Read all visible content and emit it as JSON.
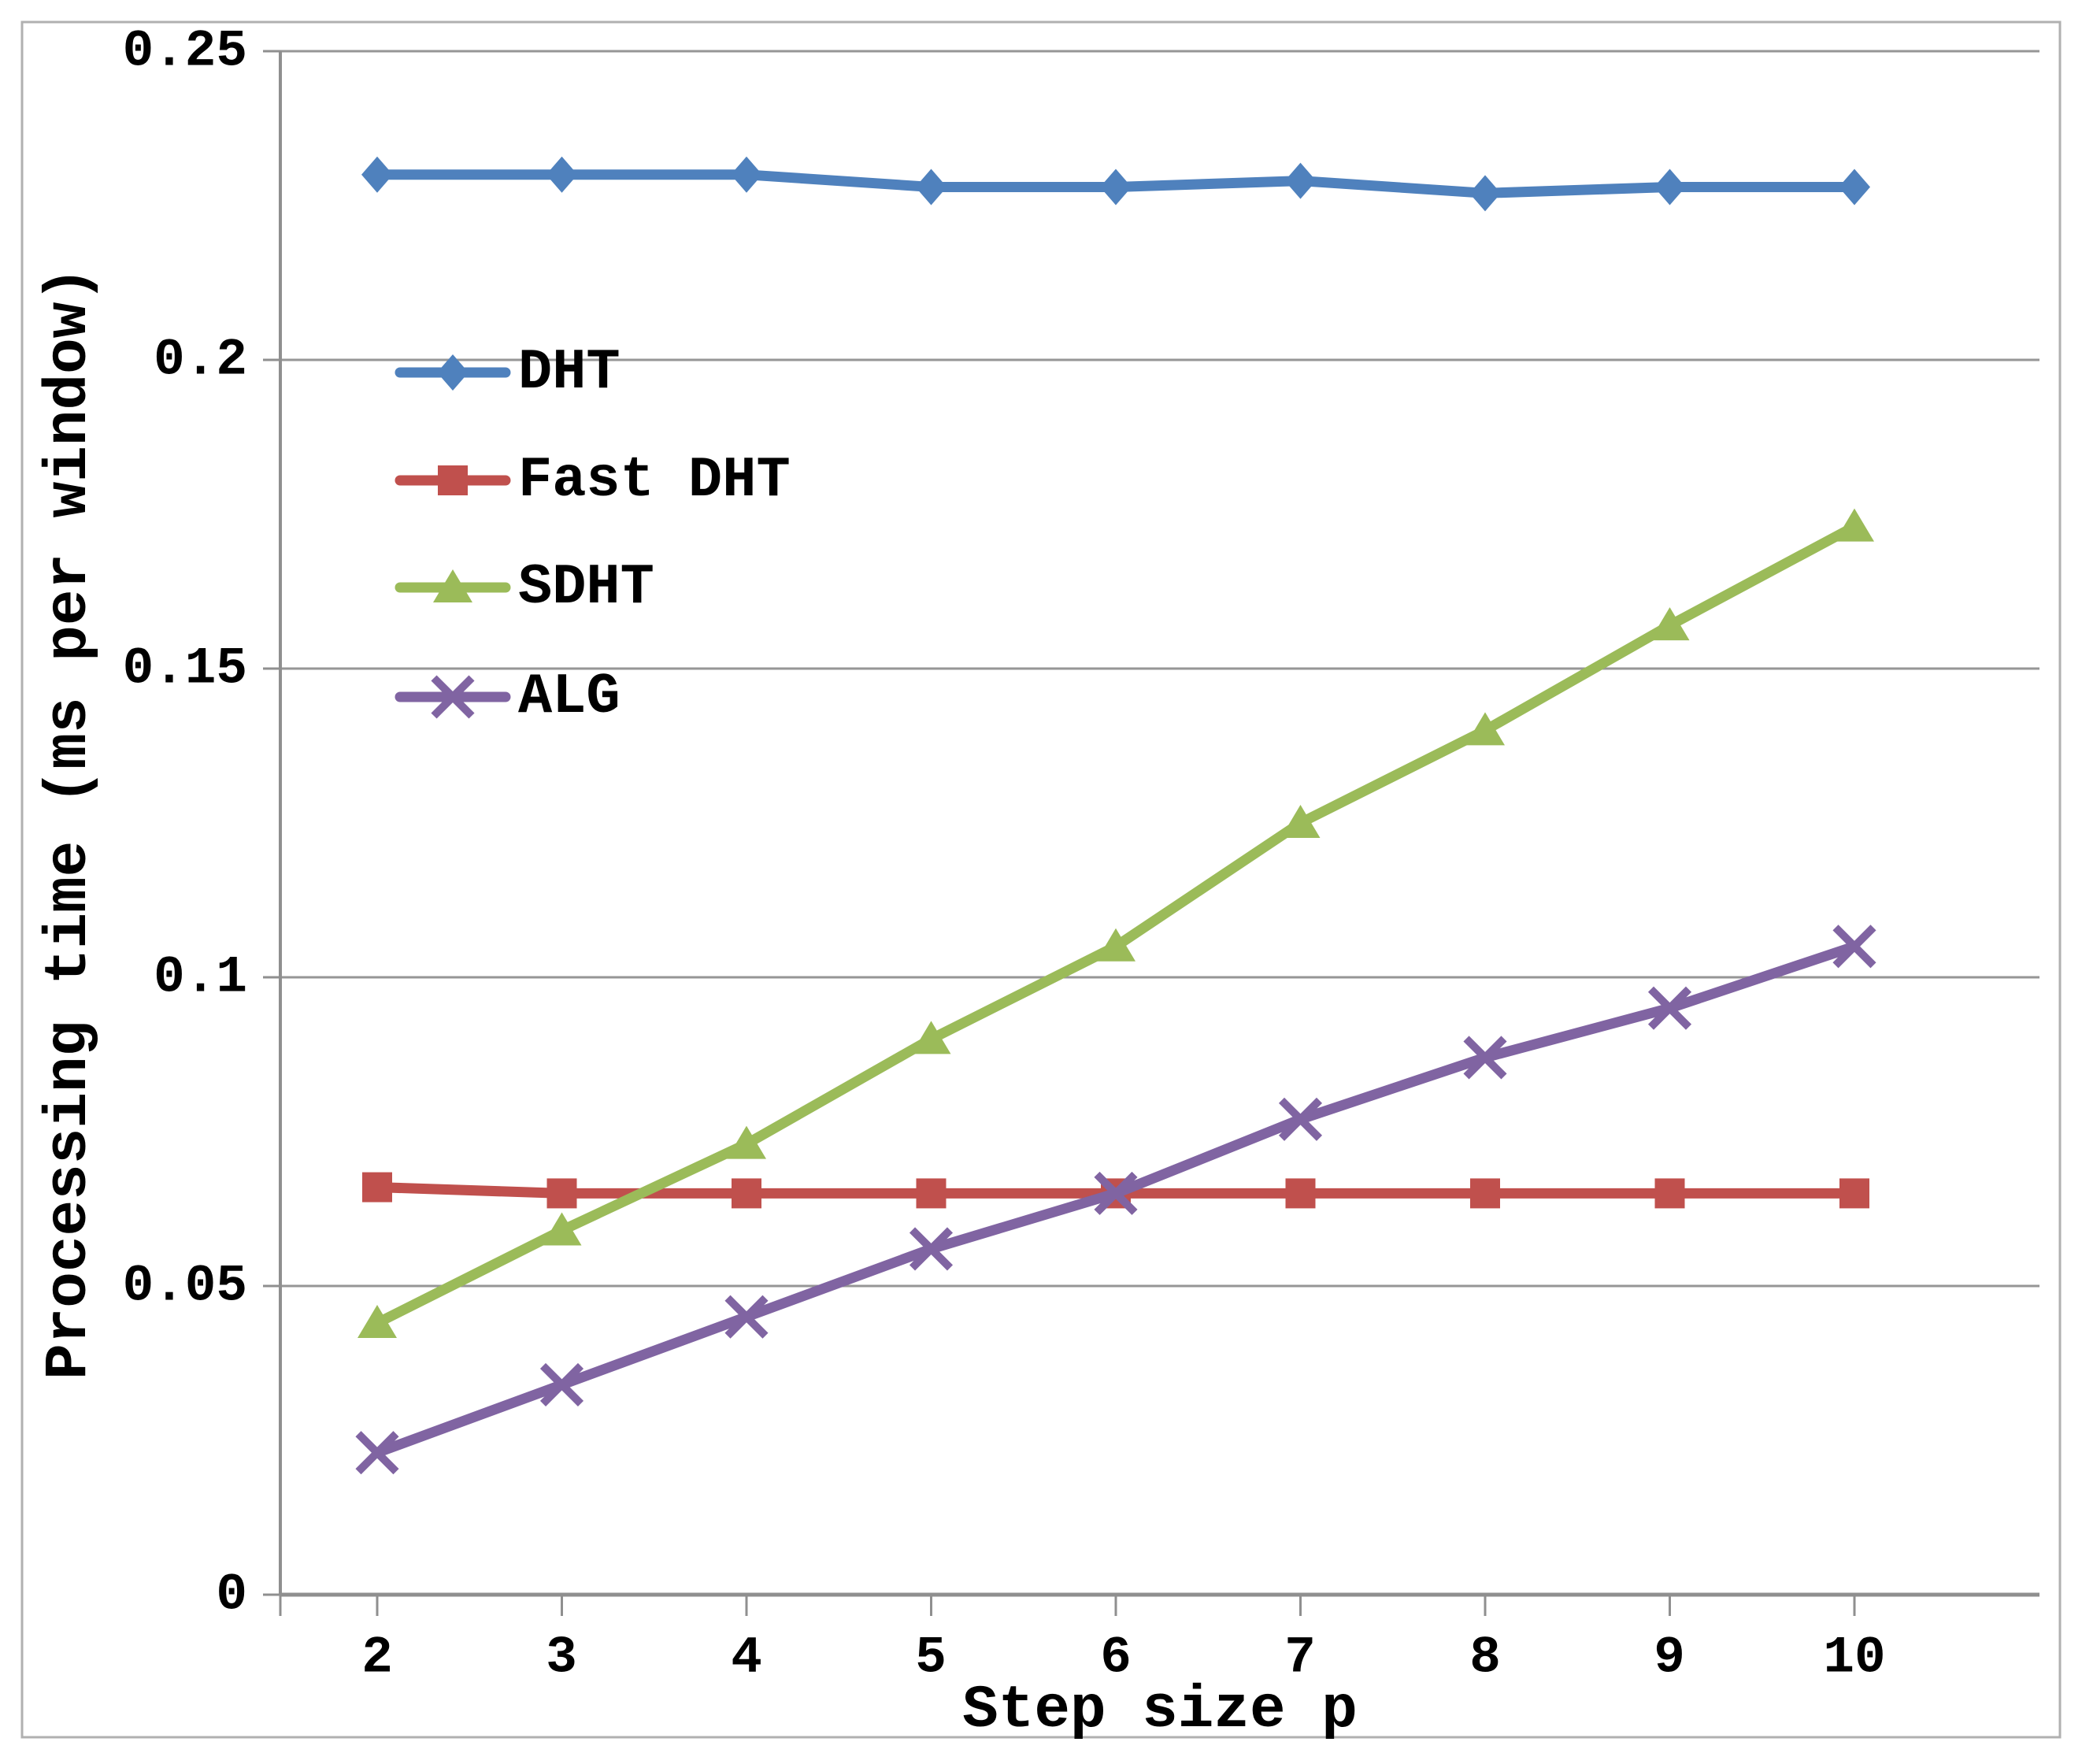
{
  "figure": {
    "background_color": "#ffffff",
    "border_color": "#b0b0b0",
    "gridline_color": "#969696",
    "axis_color": "#8f8f8f",
    "text_color": "#000000"
  },
  "chart_data": {
    "type": "line",
    "title": "",
    "xlabel": "Step size p",
    "ylabel": "Processing time (ms per window)",
    "categories": [
      2,
      3,
      4,
      5,
      6,
      7,
      8,
      9,
      10
    ],
    "x_tick_labels": [
      "2",
      "3",
      "4",
      "5",
      "6",
      "7",
      "8",
      "9",
      "10"
    ],
    "ylim": [
      0,
      0.25
    ],
    "y_ticks": [
      0,
      0.05,
      0.1,
      0.15,
      0.2,
      0.25
    ],
    "y_tick_labels": [
      "0",
      "0.05",
      "0.1",
      "0.15",
      "0.2",
      "0.25"
    ],
    "grid": "horizontal-major",
    "legend_position": "inside-upper-left",
    "series": [
      {
        "name": "DHT",
        "color": "#4F81BD",
        "marker": "diamond",
        "values": [
          0.23,
          0.23,
          0.23,
          0.228,
          0.228,
          0.229,
          0.227,
          0.228,
          0.228
        ]
      },
      {
        "name": "Fast DHT",
        "color": "#C0504D",
        "marker": "square",
        "values": [
          0.066,
          0.065,
          0.065,
          0.065,
          0.065,
          0.065,
          0.065,
          0.065,
          0.065
        ]
      },
      {
        "name": "SDHT",
        "color": "#9BBB59",
        "marker": "triangle",
        "values": [
          0.044,
          0.059,
          0.073,
          0.09,
          0.105,
          0.125,
          0.14,
          0.157,
          0.173
        ]
      },
      {
        "name": "ALG",
        "color": "#8064A2",
        "marker": "x",
        "values": [
          0.023,
          0.034,
          0.045,
          0.056,
          0.065,
          0.077,
          0.087,
          0.095,
          0.105
        ]
      }
    ]
  }
}
